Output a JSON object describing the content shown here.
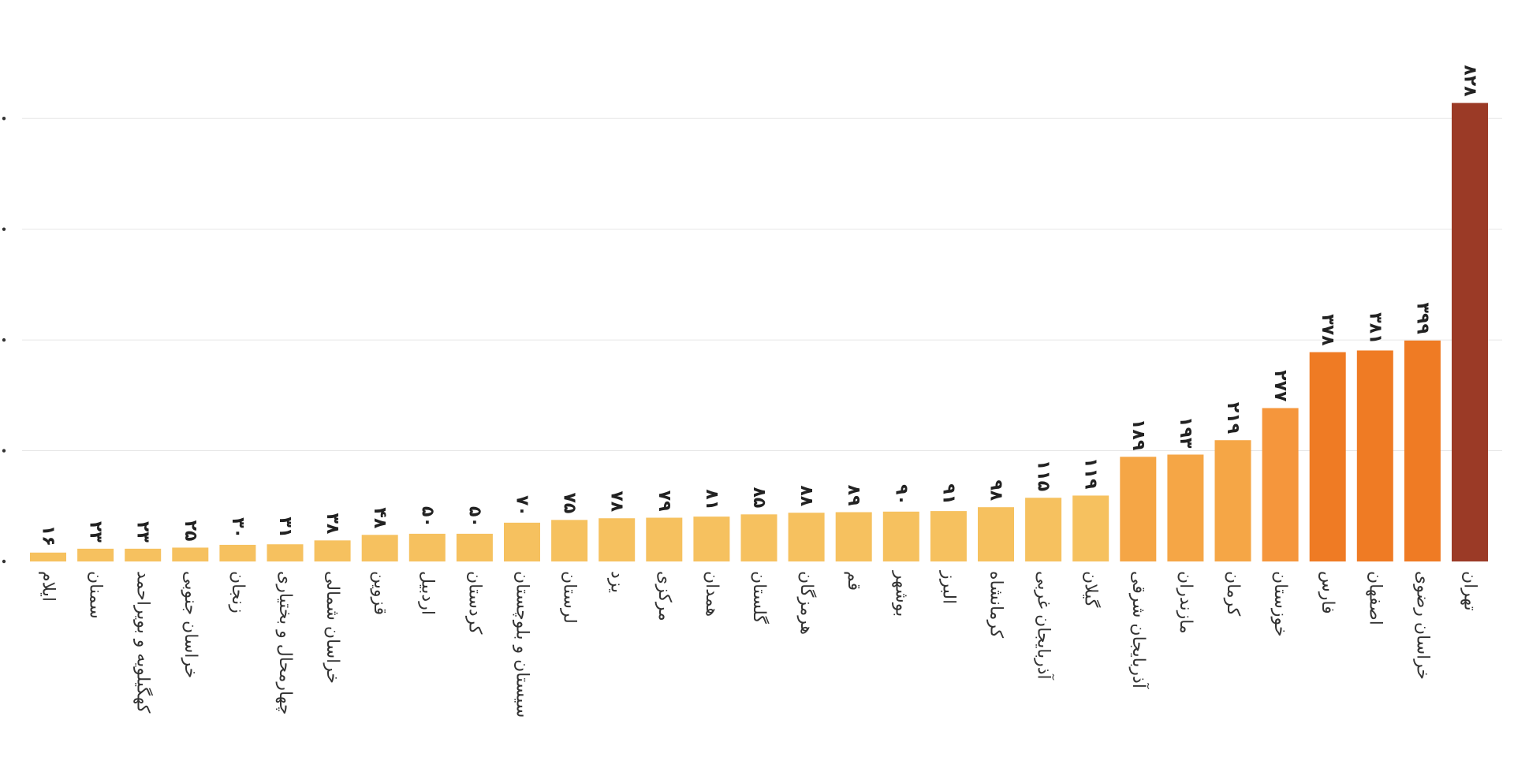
{
  "chart_data": {
    "type": "bar",
    "title": "",
    "xlabel": "",
    "ylabel": "",
    "ylim": [
      0,
      1000
    ],
    "grid": true,
    "gridlines": [
      200,
      400,
      600,
      800
    ],
    "categories": [
      "ایلام",
      "سمنان",
      "کهگیلویه و بویراحمد",
      "خراسان جنوبی",
      "زنجان",
      "چهارمحال و بختیاری",
      "خراسان شمالی",
      "قزوین",
      "اردبیل",
      "کردستان",
      "سیستان و بلوچستان",
      "لرستان",
      "یزد",
      "مرکزی",
      "همدان",
      "گلستان",
      "هرمزگان",
      "قم",
      "بوشهر",
      "البرز",
      "کرمانشاه",
      "آذربایجان غربی",
      "گیلان",
      "آذربایجان شرقی",
      "مازندران",
      "کرمان",
      "خوزستان",
      "فارس",
      "اصفهان",
      "خراسان رضوی",
      "تهران"
    ],
    "values": [
      16,
      23,
      23,
      25,
      30,
      31,
      38,
      48,
      50,
      50,
      70,
      75,
      78,
      79,
      81,
      85,
      88,
      89,
      90,
      91,
      98,
      115,
      119,
      189,
      193,
      219,
      277,
      378,
      381,
      399,
      828
    ],
    "value_labels": [
      "۱۶",
      "۲۳",
      "۲۳",
      "۲۵",
      "۳۰",
      "۳۱",
      "۳۸",
      "۴۸",
      "۵۰",
      "۵۰",
      "۷۰",
      "۷۵",
      "۷۸",
      "۷۹",
      "۸۱",
      "۸۵",
      "۸۸",
      "۸۹",
      "۹۰",
      "۹۱",
      "۹۸",
      "۱۱۵",
      "۱۱۹",
      "۱۸۹",
      "۱۹۳",
      "۲۱۹",
      "۲۷۷",
      "۳۷۸",
      "۳۸۱",
      "۳۹۹",
      "۸۲۸"
    ],
    "colors": [
      "#f6c15f",
      "#f6c15f",
      "#f6c15f",
      "#f6c15f",
      "#f6c15f",
      "#f6c15f",
      "#f6c15f",
      "#f6c15f",
      "#f6c15f",
      "#f6c15f",
      "#f6c15f",
      "#f6c15f",
      "#f6c15f",
      "#f6c15f",
      "#f6c15f",
      "#f6c15f",
      "#f6c15f",
      "#f6c15f",
      "#f6c15f",
      "#f6c15f",
      "#f6c15f",
      "#f6c15f",
      "#f6c15f",
      "#f5a646",
      "#f5a646",
      "#f5a646",
      "#f5963c",
      "#ef7b24",
      "#ef7b24",
      "#ef7b24",
      "#9b3a26"
    ]
  }
}
